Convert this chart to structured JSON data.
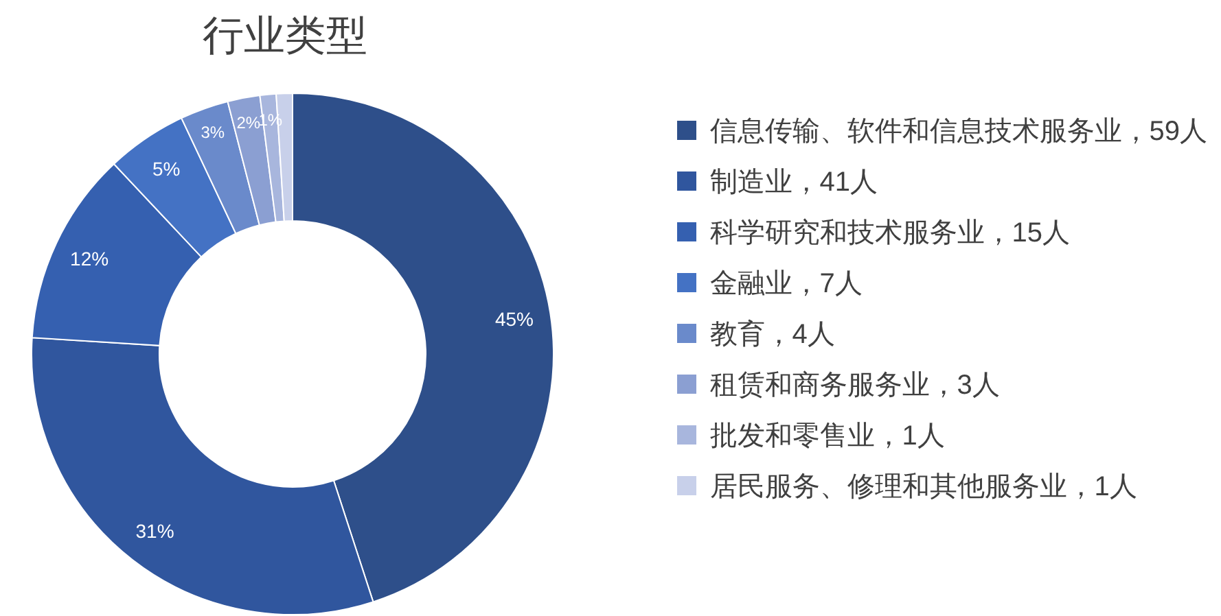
{
  "chart_data": {
    "type": "donut",
    "title": "行业类型",
    "categories": [
      "信息传输、软件和信息技术服务业，59人",
      "制造业，41人",
      "科学研究和技术服务业，15人",
      "金融业，7人",
      "教育，4人",
      "租赁和商务服务业，3人",
      "批发和零售业，1人",
      "居民服务、修理和其他服务业，1人"
    ],
    "values": [
      45,
      31,
      12,
      5,
      3,
      2,
      1,
      1
    ],
    "colors": [
      "#2e4f8a",
      "#30569e",
      "#3560b0",
      "#4472c4",
      "#6a8acb",
      "#8b9fd2",
      "#a8b6dd",
      "#c8d0ea"
    ],
    "value_labels": [
      "45%",
      "31%",
      "12%",
      "5%",
      "3%",
      "2%",
      "1%",
      null
    ],
    "legend": "right"
  }
}
